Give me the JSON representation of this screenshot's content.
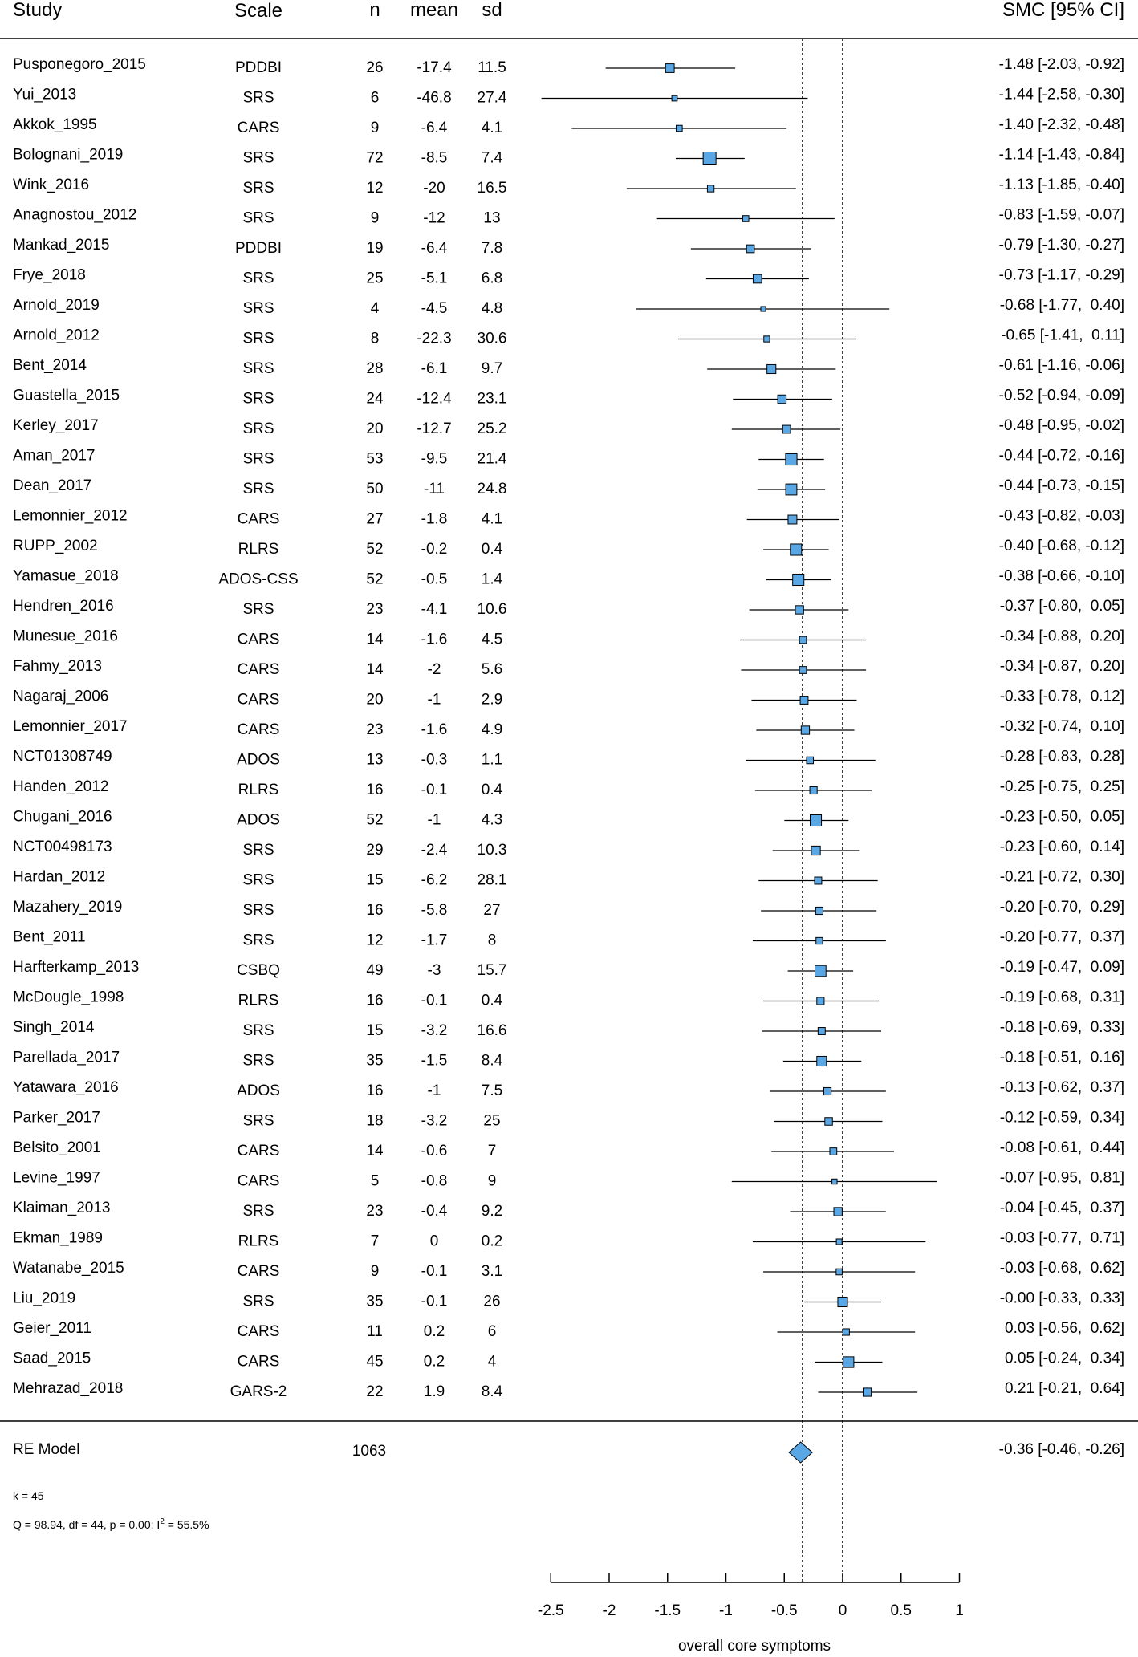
{
  "chart_data": {
    "type": "forest",
    "headers": {
      "study": "Study",
      "scale": "Scale",
      "n": "n",
      "mean": "mean",
      "sd": "sd",
      "effect": "SMC [95% CI]"
    },
    "studies": [
      {
        "name": "Pusponegoro_2015",
        "scale": "PDDBI",
        "n": "26",
        "mean": "-17.4",
        "sd": "11.5",
        "est": -1.48,
        "lo": -2.03,
        "hi": -0.92,
        "ci_text": "-1.48 [-2.03, -0.92]"
      },
      {
        "name": "Yui_2013",
        "scale": "SRS",
        "n": "6",
        "mean": "-46.8",
        "sd": "27.4",
        "est": -1.44,
        "lo": -2.58,
        "hi": -0.3,
        "ci_text": "-1.44 [-2.58, -0.30]"
      },
      {
        "name": "Akkok_1995",
        "scale": "CARS",
        "n": "9",
        "mean": "-6.4",
        "sd": "4.1",
        "est": -1.4,
        "lo": -2.32,
        "hi": -0.48,
        "ci_text": "-1.40 [-2.32, -0.48]"
      },
      {
        "name": "Bolognani_2019",
        "scale": "SRS",
        "n": "72",
        "mean": "-8.5",
        "sd": "7.4",
        "est": -1.14,
        "lo": -1.43,
        "hi": -0.84,
        "ci_text": "-1.14 [-1.43, -0.84]"
      },
      {
        "name": "Wink_2016",
        "scale": "SRS",
        "n": "12",
        "mean": "-20",
        "sd": "16.5",
        "est": -1.13,
        "lo": -1.85,
        "hi": -0.4,
        "ci_text": "-1.13 [-1.85, -0.40]"
      },
      {
        "name": "Anagnostou_2012",
        "scale": "SRS",
        "n": "9",
        "mean": "-12",
        "sd": "13",
        "est": -0.83,
        "lo": -1.59,
        "hi": -0.07,
        "ci_text": "-0.83 [-1.59, -0.07]"
      },
      {
        "name": "Mankad_2015",
        "scale": "PDDBI",
        "n": "19",
        "mean": "-6.4",
        "sd": "7.8",
        "est": -0.79,
        "lo": -1.3,
        "hi": -0.27,
        "ci_text": "-0.79 [-1.30, -0.27]"
      },
      {
        "name": "Frye_2018",
        "scale": "SRS",
        "n": "25",
        "mean": "-5.1",
        "sd": "6.8",
        "est": -0.73,
        "lo": -1.17,
        "hi": -0.29,
        "ci_text": "-0.73 [-1.17, -0.29]"
      },
      {
        "name": "Arnold_2019",
        "scale": "SRS",
        "n": "4",
        "mean": "-4.5",
        "sd": "4.8",
        "est": -0.68,
        "lo": -1.77,
        "hi": 0.4,
        "ci_text": "-0.68 [-1.77,  0.40]"
      },
      {
        "name": "Arnold_2012",
        "scale": "SRS",
        "n": "8",
        "mean": "-22.3",
        "sd": "30.6",
        "est": -0.65,
        "lo": -1.41,
        "hi": 0.11,
        "ci_text": "-0.65 [-1.41,  0.11]"
      },
      {
        "name": "Bent_2014",
        "scale": "SRS",
        "n": "28",
        "mean": "-6.1",
        "sd": "9.7",
        "est": -0.61,
        "lo": -1.16,
        "hi": -0.06,
        "ci_text": "-0.61 [-1.16, -0.06]"
      },
      {
        "name": "Guastella_2015",
        "scale": "SRS",
        "n": "24",
        "mean": "-12.4",
        "sd": "23.1",
        "est": -0.52,
        "lo": -0.94,
        "hi": -0.09,
        "ci_text": "-0.52 [-0.94, -0.09]"
      },
      {
        "name": "Kerley_2017",
        "scale": "SRS",
        "n": "20",
        "mean": "-12.7",
        "sd": "25.2",
        "est": -0.48,
        "lo": -0.95,
        "hi": -0.02,
        "ci_text": "-0.48 [-0.95, -0.02]"
      },
      {
        "name": "Aman_2017",
        "scale": "SRS",
        "n": "53",
        "mean": "-9.5",
        "sd": "21.4",
        "est": -0.44,
        "lo": -0.72,
        "hi": -0.16,
        "ci_text": "-0.44 [-0.72, -0.16]"
      },
      {
        "name": "Dean_2017",
        "scale": "SRS",
        "n": "50",
        "mean": "-11",
        "sd": "24.8",
        "est": -0.44,
        "lo": -0.73,
        "hi": -0.15,
        "ci_text": "-0.44 [-0.73, -0.15]"
      },
      {
        "name": "Lemonnier_2012",
        "scale": "CARS",
        "n": "27",
        "mean": "-1.8",
        "sd": "4.1",
        "est": -0.43,
        "lo": -0.82,
        "hi": -0.03,
        "ci_text": "-0.43 [-0.82, -0.03]"
      },
      {
        "name": "RUPP_2002",
        "scale": "RLRS",
        "n": "52",
        "mean": "-0.2",
        "sd": "0.4",
        "est": -0.4,
        "lo": -0.68,
        "hi": -0.12,
        "ci_text": "-0.40 [-0.68, -0.12]"
      },
      {
        "name": "Yamasue_2018",
        "scale": "ADOS-CSS",
        "n": "52",
        "mean": "-0.5",
        "sd": "1.4",
        "est": -0.38,
        "lo": -0.66,
        "hi": -0.1,
        "ci_text": "-0.38 [-0.66, -0.10]"
      },
      {
        "name": "Hendren_2016",
        "scale": "SRS",
        "n": "23",
        "mean": "-4.1",
        "sd": "10.6",
        "est": -0.37,
        "lo": -0.8,
        "hi": 0.05,
        "ci_text": "-0.37 [-0.80,  0.05]"
      },
      {
        "name": "Munesue_2016",
        "scale": "CARS",
        "n": "14",
        "mean": "-1.6",
        "sd": "4.5",
        "est": -0.34,
        "lo": -0.88,
        "hi": 0.2,
        "ci_text": "-0.34 [-0.88,  0.20]"
      },
      {
        "name": "Fahmy_2013",
        "scale": "CARS",
        "n": "14",
        "mean": "-2",
        "sd": "5.6",
        "est": -0.34,
        "lo": -0.87,
        "hi": 0.2,
        "ci_text": "-0.34 [-0.87,  0.20]"
      },
      {
        "name": "Nagaraj_2006",
        "scale": "CARS",
        "n": "20",
        "mean": "-1",
        "sd": "2.9",
        "est": -0.33,
        "lo": -0.78,
        "hi": 0.12,
        "ci_text": "-0.33 [-0.78,  0.12]"
      },
      {
        "name": "Lemonnier_2017",
        "scale": "CARS",
        "n": "23",
        "mean": "-1.6",
        "sd": "4.9",
        "est": -0.32,
        "lo": -0.74,
        "hi": 0.1,
        "ci_text": "-0.32 [-0.74,  0.10]"
      },
      {
        "name": "NCT01308749",
        "scale": "ADOS",
        "n": "13",
        "mean": "-0.3",
        "sd": "1.1",
        "est": -0.28,
        "lo": -0.83,
        "hi": 0.28,
        "ci_text": "-0.28 [-0.83,  0.28]"
      },
      {
        "name": "Handen_2012",
        "scale": "RLRS",
        "n": "16",
        "mean": "-0.1",
        "sd": "0.4",
        "est": -0.25,
        "lo": -0.75,
        "hi": 0.25,
        "ci_text": "-0.25 [-0.75,  0.25]"
      },
      {
        "name": "Chugani_2016",
        "scale": "ADOS",
        "n": "52",
        "mean": "-1",
        "sd": "4.3",
        "est": -0.23,
        "lo": -0.5,
        "hi": 0.05,
        "ci_text": "-0.23 [-0.50,  0.05]"
      },
      {
        "name": "NCT00498173",
        "scale": "SRS",
        "n": "29",
        "mean": "-2.4",
        "sd": "10.3",
        "est": -0.23,
        "lo": -0.6,
        "hi": 0.14,
        "ci_text": "-0.23 [-0.60,  0.14]"
      },
      {
        "name": "Hardan_2012",
        "scale": "SRS",
        "n": "15",
        "mean": "-6.2",
        "sd": "28.1",
        "est": -0.21,
        "lo": -0.72,
        "hi": 0.3,
        "ci_text": "-0.21 [-0.72,  0.30]"
      },
      {
        "name": "Mazahery_2019",
        "scale": "SRS",
        "n": "16",
        "mean": "-5.8",
        "sd": "27",
        "est": -0.2,
        "lo": -0.7,
        "hi": 0.29,
        "ci_text": "-0.20 [-0.70,  0.29]"
      },
      {
        "name": "Bent_2011",
        "scale": "SRS",
        "n": "12",
        "mean": "-1.7",
        "sd": "8",
        "est": -0.2,
        "lo": -0.77,
        "hi": 0.37,
        "ci_text": "-0.20 [-0.77,  0.37]"
      },
      {
        "name": "Harfterkamp_2013",
        "scale": "CSBQ",
        "n": "49",
        "mean": "-3",
        "sd": "15.7",
        "est": -0.19,
        "lo": -0.47,
        "hi": 0.09,
        "ci_text": "-0.19 [-0.47,  0.09]"
      },
      {
        "name": "McDougle_1998",
        "scale": "RLRS",
        "n": "16",
        "mean": "-0.1",
        "sd": "0.4",
        "est": -0.19,
        "lo": -0.68,
        "hi": 0.31,
        "ci_text": "-0.19 [-0.68,  0.31]"
      },
      {
        "name": "Singh_2014",
        "scale": "SRS",
        "n": "15",
        "mean": "-3.2",
        "sd": "16.6",
        "est": -0.18,
        "lo": -0.69,
        "hi": 0.33,
        "ci_text": "-0.18 [-0.69,  0.33]"
      },
      {
        "name": "Parellada_2017",
        "scale": "SRS",
        "n": "35",
        "mean": "-1.5",
        "sd": "8.4",
        "est": -0.18,
        "lo": -0.51,
        "hi": 0.16,
        "ci_text": "-0.18 [-0.51,  0.16]"
      },
      {
        "name": "Yatawara_2016",
        "scale": "ADOS",
        "n": "16",
        "mean": "-1",
        "sd": "7.5",
        "est": -0.13,
        "lo": -0.62,
        "hi": 0.37,
        "ci_text": "-0.13 [-0.62,  0.37]"
      },
      {
        "name": "Parker_2017",
        "scale": "SRS",
        "n": "18",
        "mean": "-3.2",
        "sd": "25",
        "est": -0.12,
        "lo": -0.59,
        "hi": 0.34,
        "ci_text": "-0.12 [-0.59,  0.34]"
      },
      {
        "name": "Belsito_2001",
        "scale": "CARS",
        "n": "14",
        "mean": "-0.6",
        "sd": "7",
        "est": -0.08,
        "lo": -0.61,
        "hi": 0.44,
        "ci_text": "-0.08 [-0.61,  0.44]"
      },
      {
        "name": "Levine_1997",
        "scale": "CARS",
        "n": "5",
        "mean": "-0.8",
        "sd": "9",
        "est": -0.07,
        "lo": -0.95,
        "hi": 0.81,
        "ci_text": "-0.07 [-0.95,  0.81]"
      },
      {
        "name": "Klaiman_2013",
        "scale": "SRS",
        "n": "23",
        "mean": "-0.4",
        "sd": "9.2",
        "est": -0.04,
        "lo": -0.45,
        "hi": 0.37,
        "ci_text": "-0.04 [-0.45,  0.37]"
      },
      {
        "name": "Ekman_1989",
        "scale": "RLRS",
        "n": "7",
        "mean": "0",
        "sd": "0.2",
        "est": -0.03,
        "lo": -0.77,
        "hi": 0.71,
        "ci_text": "-0.03 [-0.77,  0.71]"
      },
      {
        "name": "Watanabe_2015",
        "scale": "CARS",
        "n": "9",
        "mean": "-0.1",
        "sd": "3.1",
        "est": -0.03,
        "lo": -0.68,
        "hi": 0.62,
        "ci_text": "-0.03 [-0.68,  0.62]"
      },
      {
        "name": "Liu_2019",
        "scale": "SRS",
        "n": "35",
        "mean": "-0.1",
        "sd": "26",
        "est": -0.0,
        "lo": -0.33,
        "hi": 0.33,
        "ci_text": "-0.00 [-0.33,  0.33]"
      },
      {
        "name": "Geier_2011",
        "scale": "CARS",
        "n": "11",
        "mean": "0.2",
        "sd": "6",
        "est": 0.03,
        "lo": -0.56,
        "hi": 0.62,
        "ci_text": "0.03 [-0.56,  0.62]"
      },
      {
        "name": "Saad_2015",
        "scale": "CARS",
        "n": "45",
        "mean": "0.2",
        "sd": "4",
        "est": 0.05,
        "lo": -0.24,
        "hi": 0.34,
        "ci_text": "0.05 [-0.24,  0.34]"
      },
      {
        "name": "Mehrazad_2018",
        "scale": "GARS-2",
        "n": "22",
        "mean": "1.9",
        "sd": "8.4",
        "est": 0.21,
        "lo": -0.21,
        "hi": 0.64,
        "ci_text": "0.21 [-0.21,  0.64]"
      }
    ],
    "summary": {
      "label": "RE Model",
      "n": "1063",
      "est": -0.36,
      "lo": -0.46,
      "hi": -0.26,
      "ci_text": "-0.36 [-0.46, -0.26]"
    },
    "stats": {
      "k_text": "k = 45",
      "q_text": "Q = 98.94, df = 44, p = 0.00; I",
      "i2_sup": "2",
      "i2_text": " = 55.5%"
    },
    "xaxis": {
      "label": "overall core symptoms",
      "range": [
        -2.5,
        1
      ],
      "ticks": [
        -2.5,
        -2,
        -1.5,
        -1,
        -0.5,
        0,
        0.5,
        1
      ],
      "tick_labels": [
        "-2.5",
        "-2",
        "-1.5",
        "-1",
        "-0.5",
        "0",
        "0.5",
        "1"
      ]
    },
    "reference_lines": [
      0,
      -0.36
    ],
    "marker_color": "#5aa7e6"
  }
}
